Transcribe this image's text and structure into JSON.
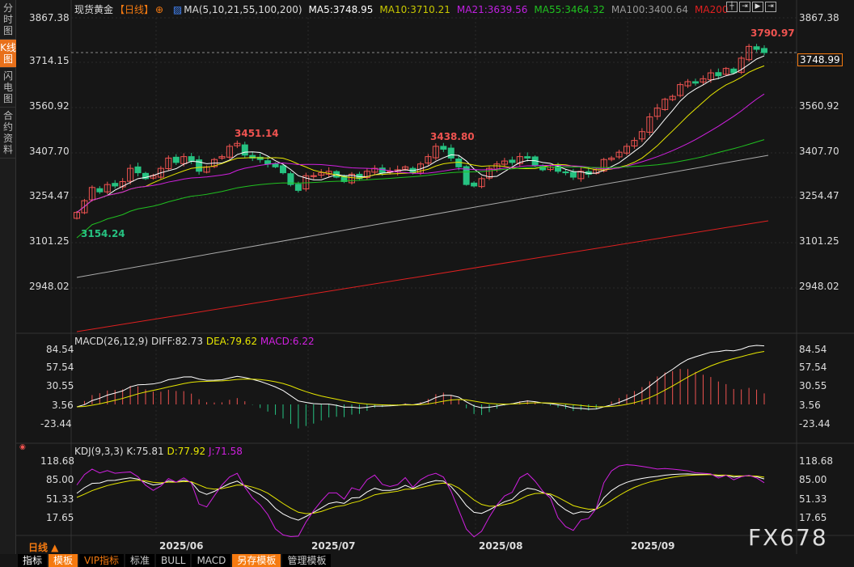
{
  "sidebar": {
    "tabs": [
      "分时图",
      "K线图",
      "闪电图",
      "合约资料"
    ],
    "active": 1
  },
  "header": {
    "title": "现货黄金",
    "period": "【日线】",
    "ma_label": "MA(5,10,21,55,100,200)",
    "ma5": "MA5:3748.95",
    "ma10": "MA10:3710.21",
    "ma21": "MA21:3639.56",
    "ma55": "MA55:3464.32",
    "ma100": "MA100:3400.64",
    "ma200": "MA200"
  },
  "colors": {
    "up": "#ef5350",
    "down": "#26c281",
    "ma5": "#ffffff",
    "ma10": "#e6e600",
    "ma21": "#d020e0",
    "ma55": "#20c020",
    "ma100": "#aaaaaa",
    "ma200": "#e02020",
    "accent": "#f57a10"
  },
  "price_axis": [
    "3867.38",
    "3714.15",
    "3560.92",
    "3407.70",
    "3254.47",
    "3101.25",
    "2948.02"
  ],
  "price_marks": {
    "last": "3748.99",
    "high": "3790.97",
    "peak1": "3451.14",
    "peak2": "3438.80",
    "low": "3154.24"
  },
  "macd": {
    "label": "MACD(26,12,9)",
    "diff": "DIFF:82.73",
    "dea": "DEA:79.62",
    "macd": "MACD:6.22",
    "axis": [
      "84.54",
      "57.54",
      "30.55",
      "3.56",
      "-23.44"
    ]
  },
  "kdj": {
    "label": "KDJ(9,3,3)",
    "k": "K:75.81",
    "d": "D:77.92",
    "j": "J:71.58",
    "axis": [
      "118.68",
      "85.00",
      "51.33",
      "17.65"
    ]
  },
  "dates": [
    "2025/06",
    "2025/07",
    "2025/08",
    "2025/09"
  ],
  "period_label": "日线 ▲",
  "bottom_tabs": [
    "指标",
    "模板",
    "VIP指标",
    "标准",
    "BULL",
    "MACD",
    "另存模板",
    "管理模板"
  ],
  "watermark": "FX678",
  "chart_data": {
    "type": "candlestick",
    "closes": [
      3205,
      3245,
      3290,
      3275,
      3300,
      3295,
      3310,
      3355,
      3340,
      3320,
      3330,
      3355,
      3390,
      3375,
      3395,
      3380,
      3345,
      3360,
      3385,
      3395,
      3430,
      3440,
      3400,
      3390,
      3385,
      3370,
      3360,
      3340,
      3300,
      3280,
      3330,
      3330,
      3340,
      3345,
      3325,
      3310,
      3335,
      3320,
      3345,
      3355,
      3340,
      3345,
      3350,
      3360,
      3340,
      3370,
      3395,
      3430,
      3420,
      3390,
      3360,
      3300,
      3295,
      3320,
      3355,
      3370,
      3380,
      3375,
      3395,
      3390,
      3365,
      3350,
      3360,
      3345,
      3340,
      3325,
      3345,
      3335,
      3350,
      3385,
      3390,
      3410,
      3430,
      3450,
      3480,
      3530,
      3560,
      3590,
      3600,
      3640,
      3650,
      3645,
      3660,
      3680,
      3670,
      3695,
      3680,
      3730,
      3770,
      3760,
      3749
    ],
    "ylim": [
      2948.02,
      3867.38
    ]
  }
}
